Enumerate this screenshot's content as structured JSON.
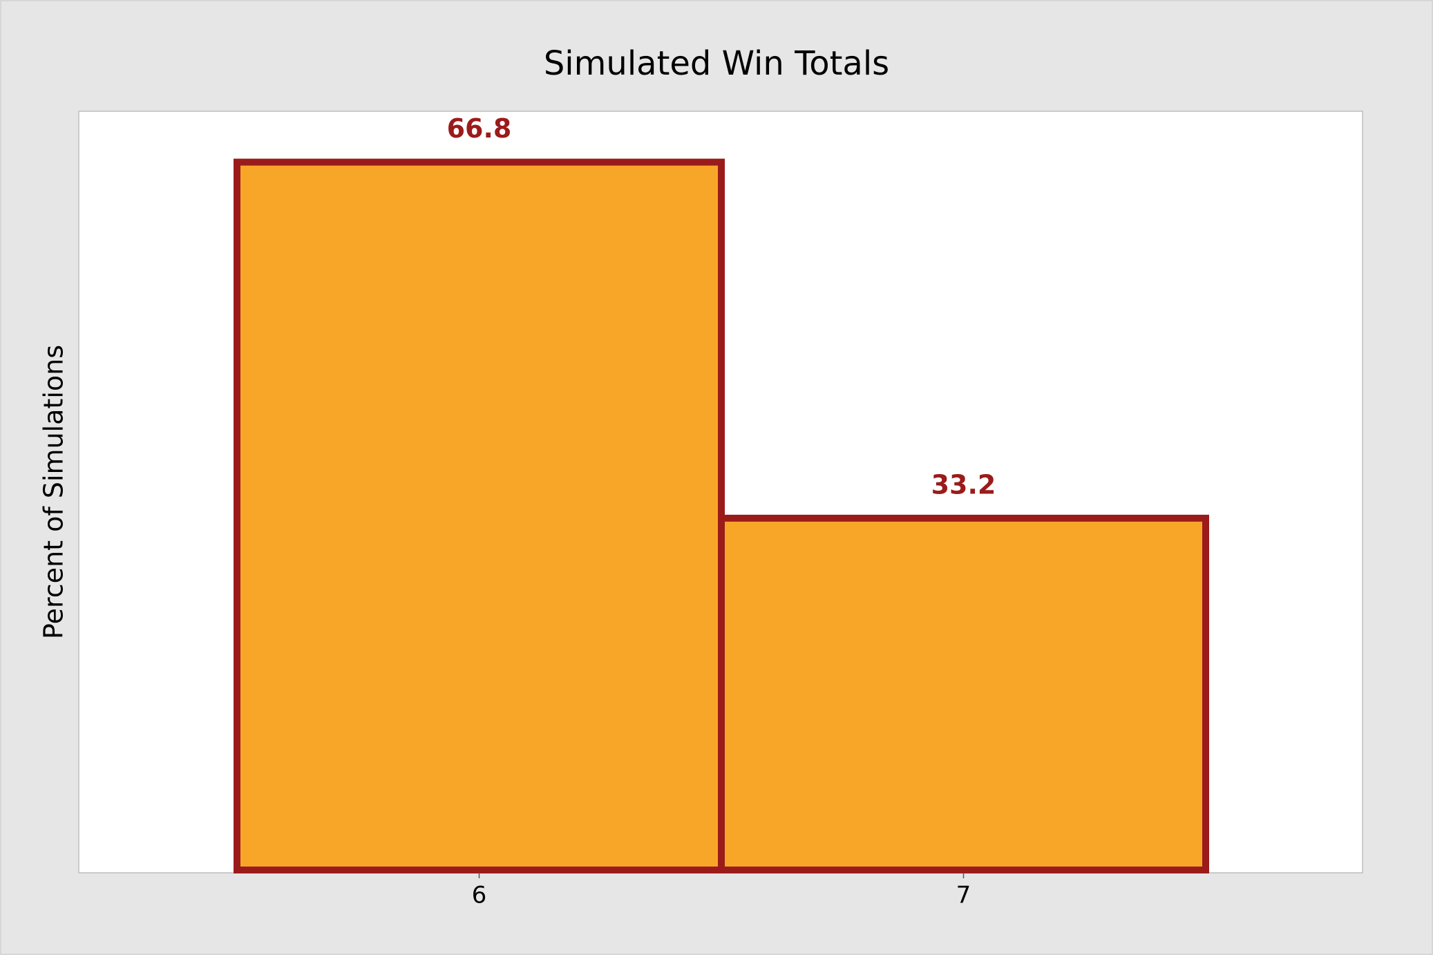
{
  "chart_data": {
    "type": "bar",
    "title": "Simulated Win Totals",
    "y_label": "Percent of Simulations",
    "categories": [
      "6",
      "7"
    ],
    "values": [
      66.8,
      33.2
    ],
    "value_labels": [
      "66.8",
      "33.2"
    ],
    "color": "#f8a628",
    "edge_color": "#9b1b1b",
    "ylim": [
      0,
      71.6
    ],
    "grid": false
  }
}
